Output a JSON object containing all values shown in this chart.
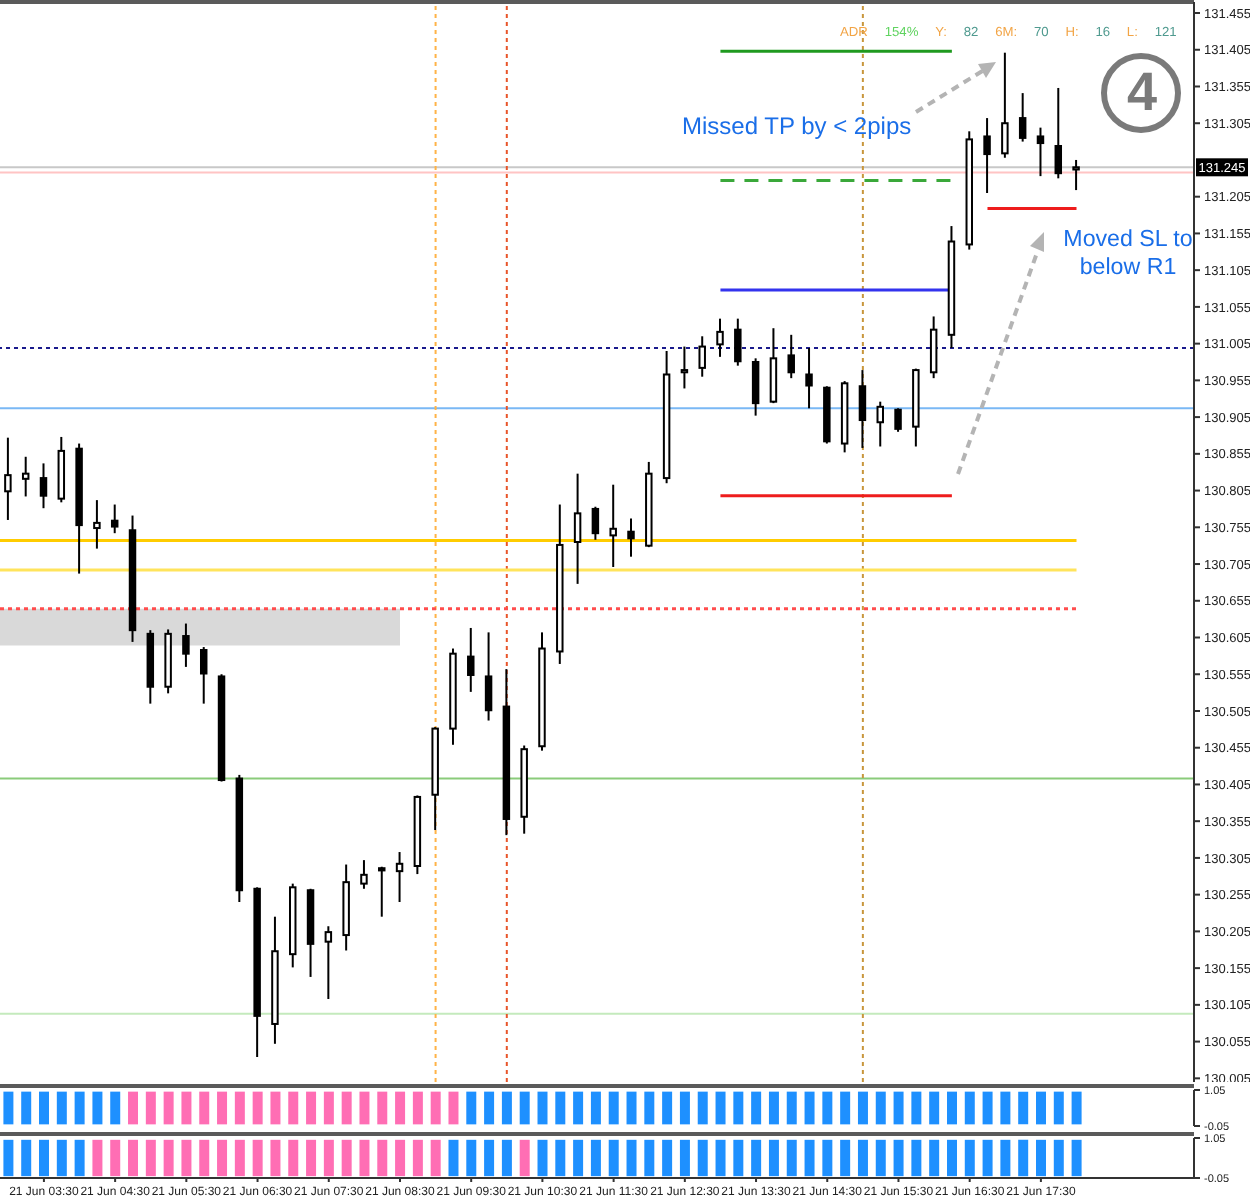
{
  "chart_data": [
    {
      "type": "candlestick",
      "x": [
        "--06-21T03:00",
        "--06-21T03:15",
        "--06-21T03:30",
        "--06-21T03:45",
        "--06-21T04:00",
        "--06-21T04:15",
        "--06-21T04:30",
        "--06-21T04:45",
        "--06-21T05:00",
        "--06-21T05:15",
        "--06-21T05:30",
        "--06-21T05:45",
        "--06-21T06:00",
        "--06-21T06:15",
        "--06-21T06:30",
        "--06-21T06:45",
        "--06-21T07:00",
        "--06-21T07:15",
        "--06-21T07:30",
        "--06-21T07:45",
        "--06-21T08:00",
        "--06-21T08:15",
        "--06-21T08:30",
        "--06-21T08:45",
        "--06-21T09:00",
        "--06-21T09:15",
        "--06-21T09:30",
        "--06-21T09:45",
        "--06-21T10:00",
        "--06-21T10:15",
        "--06-21T10:30",
        "--06-21T10:45",
        "--06-21T11:00",
        "--06-21T11:15",
        "--06-21T11:30",
        "--06-21T11:45",
        "--06-21T12:00",
        "--06-21T12:15",
        "--06-21T12:30",
        "--06-21T12:45",
        "--06-21T13:00",
        "--06-21T13:15",
        "--06-21T13:30",
        "--06-21T13:45",
        "--06-21T14:00",
        "--06-21T14:15",
        "--06-21T14:30",
        "--06-21T14:45",
        "--06-21T15:00",
        "--06-21T15:15",
        "--06-21T15:30",
        "--06-21T15:45",
        "--06-21T16:00",
        "--06-21T16:15",
        "--06-21T16:30",
        "--06-21T16:45",
        "--06-21T17:00",
        "--06-21T17:15",
        "--06-21T17:30",
        "--06-21T17:45",
        "--06-21T18:00"
      ],
      "ohlc": [
        [
          130.804,
          130.877,
          130.765,
          130.826
        ],
        [
          130.821,
          130.851,
          130.797,
          130.828
        ],
        [
          130.822,
          130.842,
          130.781,
          130.798
        ],
        [
          130.794,
          130.878,
          130.789,
          130.859
        ],
        [
          130.862,
          130.869,
          130.692,
          130.758
        ],
        [
          130.754,
          130.792,
          130.726,
          130.761
        ],
        [
          130.764,
          130.786,
          130.747,
          130.756
        ],
        [
          130.751,
          130.771,
          130.599,
          130.615
        ],
        [
          130.61,
          130.615,
          130.515,
          130.538
        ],
        [
          130.538,
          130.616,
          130.529,
          130.61
        ],
        [
          130.607,
          130.624,
          130.565,
          130.583
        ],
        [
          130.588,
          130.592,
          130.515,
          130.556
        ],
        [
          130.552,
          130.555,
          130.409,
          130.411
        ],
        [
          130.413,
          130.418,
          130.245,
          130.261
        ],
        [
          130.263,
          130.265,
          130.034,
          130.09
        ],
        [
          130.079,
          130.225,
          130.052,
          130.178
        ],
        [
          130.174,
          130.27,
          130.156,
          130.265
        ],
        [
          130.261,
          130.263,
          130.143,
          130.188
        ],
        [
          130.191,
          130.212,
          130.113,
          130.204
        ],
        [
          130.2,
          130.296,
          130.179,
          130.272
        ],
        [
          130.27,
          130.302,
          130.263,
          130.282
        ],
        [
          130.291,
          130.293,
          130.225,
          130.288
        ],
        [
          130.287,
          130.313,
          130.245,
          130.297
        ],
        [
          130.294,
          130.39,
          130.283,
          130.388
        ],
        [
          130.391,
          130.483,
          130.343,
          130.481
        ],
        [
          130.481,
          130.59,
          130.459,
          130.583
        ],
        [
          130.579,
          130.618,
          130.531,
          130.554
        ],
        [
          130.552,
          130.612,
          130.492,
          130.506
        ],
        [
          130.511,
          130.562,
          130.336,
          130.358
        ],
        [
          130.361,
          130.458,
          130.338,
          130.453
        ],
        [
          130.457,
          130.612,
          130.451,
          130.59
        ],
        [
          130.586,
          130.786,
          130.569,
          130.731
        ],
        [
          130.735,
          130.828,
          130.678,
          130.774
        ],
        [
          130.78,
          130.783,
          130.738,
          130.747
        ],
        [
          130.744,
          130.813,
          130.701,
          130.753
        ],
        [
          130.749,
          130.767,
          130.715,
          130.74
        ],
        [
          130.73,
          130.844,
          130.728,
          130.828
        ],
        [
          130.822,
          130.995,
          130.815,
          130.963
        ],
        [
          130.966,
          131.001,
          130.944,
          130.969
        ],
        [
          130.972,
          131.015,
          130.96,
          131.001
        ],
        [
          131.004,
          131.039,
          130.987,
          131.021
        ],
        [
          131.024,
          131.039,
          130.975,
          130.981
        ],
        [
          130.98,
          130.985,
          130.907,
          130.924
        ],
        [
          130.926,
          131.026,
          130.924,
          130.985
        ],
        [
          130.989,
          131.017,
          130.958,
          130.966
        ],
        [
          130.963,
          130.999,
          130.917,
          130.948
        ],
        [
          130.945,
          130.947,
          130.869,
          130.872
        ],
        [
          130.869,
          130.954,
          130.857,
          130.951
        ],
        [
          130.947,
          130.969,
          130.863,
          130.901
        ],
        [
          130.898,
          130.926,
          130.865,
          130.919
        ],
        [
          130.915,
          130.917,
          130.885,
          130.889
        ],
        [
          130.892,
          130.971,
          130.865,
          130.969
        ],
        [
          130.966,
          131.042,
          130.958,
          131.024
        ],
        [
          131.017,
          131.165,
          130.999,
          131.144
        ],
        [
          131.14,
          131.294,
          131.133,
          131.283
        ],
        [
          131.287,
          131.312,
          131.21,
          131.263
        ],
        [
          131.264,
          131.401,
          131.258,
          131.305
        ],
        [
          131.312,
          131.346,
          131.28,
          131.285
        ],
        [
          131.287,
          131.299,
          131.233,
          131.278
        ],
        [
          131.274,
          131.353,
          131.23,
          131.237
        ],
        [
          131.242,
          131.255,
          131.214,
          131.245
        ]
      ],
      "color": "#000000",
      "series": [
        {
          "type": "line",
          "x": [
            "--06-21T02:53",
            "--06-21T08:30"
          ],
          "values": [
            130.642,
            130.642
          ],
          "lower": [
            130.594,
            130.594
          ],
          "upper": [
            130.642,
            130.642
          ],
          "color": "#d9d9d9",
          "line_style": "solid"
        },
        {
          "type": "line",
          "x": [
            "--06-21T02:53",
            "--06-21T18:00"
          ],
          "values": [
            130.737,
            130.737
          ],
          "color": "#ffcc00",
          "line_style": "solid"
        },
        {
          "type": "line",
          "x": [
            "--06-21T02:53",
            "--06-21T18:00"
          ],
          "values": [
            130.697,
            130.697
          ],
          "color": "#ffe45c",
          "line_style": "solid"
        },
        {
          "type": "line",
          "x": [
            "--06-21T02:53",
            "--06-21T18:00"
          ],
          "values": [
            130.644,
            130.644
          ],
          "color": "#ff4d4d",
          "line_style": "dotted"
        },
        {
          "type": "line",
          "x": [
            "--06-21T13:00",
            "--06-21T16:15"
          ],
          "values": [
            131.403,
            131.403
          ],
          "color": "#1f9a1f",
          "line_style": "solid"
        },
        {
          "type": "line",
          "x": [
            "--06-21T13:00",
            "--06-21T16:15"
          ],
          "values": [
            131.227,
            131.227
          ],
          "color": "#3aa83a",
          "line_style": "dashed"
        },
        {
          "type": "line",
          "x": [
            "--06-21T13:00",
            "--06-21T16:15"
          ],
          "values": [
            131.078,
            131.078
          ],
          "color": "#3333ee",
          "line_style": "solid"
        },
        {
          "type": "line",
          "x": [
            "--06-21T13:00",
            "--06-21T16:15"
          ],
          "values": [
            130.798,
            130.798
          ],
          "color": "#ee1c1c",
          "line_style": "solid"
        },
        {
          "type": "line",
          "x": [
            "--06-21T16:45",
            "--06-21T18:00"
          ],
          "values": [
            131.189,
            131.189
          ],
          "color": "#ee1c1c",
          "line_style": "solid"
        }
      ],
      "ref_lines": [
        {
          "axis": "y",
          "value": 131.245,
          "label": "131.245",
          "color": "#c8c8c8",
          "line_style": "solid"
        },
        {
          "axis": "y",
          "value": 131.238,
          "color": "#ffc4c4",
          "line_style": "solid"
        },
        {
          "axis": "y",
          "value": 130.999,
          "color": "#1a1a8c",
          "line_style": "dotted"
        },
        {
          "axis": "y",
          "value": 130.917,
          "color": "#7ab8f5",
          "line_style": "solid"
        },
        {
          "axis": "y",
          "value": 130.413,
          "color": "#8acb7a",
          "line_style": "solid"
        },
        {
          "axis": "y",
          "value": 130.093,
          "color": "#c4eabd",
          "line_style": "solid"
        },
        {
          "axis": "x",
          "value": "--06-21T09:00",
          "color": "#ffb347",
          "line_style": "dotted"
        },
        {
          "axis": "x",
          "value": "--06-21T10:00",
          "color": "#e8552a",
          "line_style": "dotted"
        },
        {
          "axis": "x",
          "value": "--06-21T15:00",
          "color": "#c8963c",
          "line_style": "dotted"
        }
      ],
      "annotations": [
        "ADR 154% Y: 82 6M: 70 H: 16 L: 121",
        "Missed TP by < 2pips",
        "Moved SL to below R1",
        "4"
      ],
      "xlim": [
        "--06-21T02:53",
        "--06-21T19:39"
      ],
      "ylim": [
        130.0,
        131.47
      ],
      "yticks": [
        130.005,
        130.055,
        130.105,
        130.155,
        130.205,
        130.255,
        130.305,
        130.355,
        130.405,
        130.455,
        130.505,
        130.555,
        130.605,
        130.655,
        130.705,
        130.755,
        130.805,
        130.855,
        130.905,
        130.955,
        131.005,
        131.055,
        131.105,
        131.155,
        131.205,
        131.305,
        131.355,
        131.405,
        131.455
      ],
      "tick_labels": "y"
    },
    {
      "type": "bar",
      "x": [
        "--06-21T03:00",
        "--06-21T03:15",
        "--06-21T03:30",
        "--06-21T03:45",
        "--06-21T04:00",
        "--06-21T04:15",
        "--06-21T04:30",
        "--06-21T04:45",
        "--06-21T05:00",
        "--06-21T05:15",
        "--06-21T05:30",
        "--06-21T05:45",
        "--06-21T06:00",
        "--06-21T06:15",
        "--06-21T06:30",
        "--06-21T06:45",
        "--06-21T07:00",
        "--06-21T07:15",
        "--06-21T07:30",
        "--06-21T07:45",
        "--06-21T08:00",
        "--06-21T08:15",
        "--06-21T08:30",
        "--06-21T08:45",
        "--06-21T09:00",
        "--06-21T09:15",
        "--06-21T09:30",
        "--06-21T09:45",
        "--06-21T10:00",
        "--06-21T10:15",
        "--06-21T10:30",
        "--06-21T10:45",
        "--06-21T11:00",
        "--06-21T11:15",
        "--06-21T11:30",
        "--06-21T11:45",
        "--06-21T12:00",
        "--06-21T12:15",
        "--06-21T12:30",
        "--06-21T12:45",
        "--06-21T13:00",
        "--06-21T13:15",
        "--06-21T13:30",
        "--06-21T13:45",
        "--06-21T14:00",
        "--06-21T14:15",
        "--06-21T14:30",
        "--06-21T14:45",
        "--06-21T15:00",
        "--06-21T15:15",
        "--06-21T15:30",
        "--06-21T15:45",
        "--06-21T16:00",
        "--06-21T16:15",
        "--06-21T16:30",
        "--06-21T16:45",
        "--06-21T17:00",
        "--06-21T17:15",
        "--06-21T17:30",
        "--06-21T17:45",
        "--06-21T18:00"
      ],
      "values": [
        1,
        1,
        1,
        1,
        1,
        1,
        1,
        1,
        1,
        1,
        1,
        1,
        1,
        1,
        1,
        1,
        1,
        1,
        1,
        1,
        1,
        1,
        1,
        1,
        1,
        1,
        1,
        1,
        1,
        1,
        1,
        1,
        1,
        1,
        1,
        1,
        1,
        1,
        1,
        1,
        1,
        1,
        1,
        1,
        1,
        1,
        1,
        1,
        1,
        1,
        1,
        1,
        1,
        1,
        1,
        1,
        1,
        1,
        1,
        1,
        1
      ],
      "colors": [
        "#1e90ff",
        "#1e90ff",
        "#1e90ff",
        "#1e90ff",
        "#1e90ff",
        "#1e90ff",
        "#1e90ff",
        "#ff6eb4",
        "#ff6eb4",
        "#ff6eb4",
        "#ff6eb4",
        "#ff6eb4",
        "#ff6eb4",
        "#ff6eb4",
        "#ff6eb4",
        "#ff6eb4",
        "#ff6eb4",
        "#ff6eb4",
        "#ff6eb4",
        "#ff6eb4",
        "#ff6eb4",
        "#ff6eb4",
        "#ff6eb4",
        "#ff6eb4",
        "#ff6eb4",
        "#ff6eb4",
        "#1e90ff",
        "#1e90ff",
        "#1e90ff",
        "#1e90ff",
        "#1e90ff",
        "#1e90ff",
        "#1e90ff",
        "#1e90ff",
        "#1e90ff",
        "#1e90ff",
        "#1e90ff",
        "#1e90ff",
        "#1e90ff",
        "#1e90ff",
        "#1e90ff",
        "#1e90ff",
        "#1e90ff",
        "#1e90ff",
        "#1e90ff",
        "#1e90ff",
        "#1e90ff",
        "#1e90ff",
        "#1e90ff",
        "#1e90ff",
        "#1e90ff",
        "#1e90ff",
        "#1e90ff",
        "#1e90ff",
        "#1e90ff",
        "#1e90ff",
        "#1e90ff",
        "#1e90ff",
        "#1e90ff",
        "#1e90ff",
        "#1e90ff"
      ],
      "xlim": [
        "--06-21T02:53",
        "--06-21T19:39"
      ],
      "ylim": [
        -0.05,
        1.05
      ],
      "yticks": [
        -0.05,
        1.05
      ],
      "tick_labels": "y"
    },
    {
      "type": "bar",
      "x": [
        "--06-21T03:00",
        "--06-21T03:15",
        "--06-21T03:30",
        "--06-21T03:45",
        "--06-21T04:00",
        "--06-21T04:15",
        "--06-21T04:30",
        "--06-21T04:45",
        "--06-21T05:00",
        "--06-21T05:15",
        "--06-21T05:30",
        "--06-21T05:45",
        "--06-21T06:00",
        "--06-21T06:15",
        "--06-21T06:30",
        "--06-21T06:45",
        "--06-21T07:00",
        "--06-21T07:15",
        "--06-21T07:30",
        "--06-21T07:45",
        "--06-21T08:00",
        "--06-21T08:15",
        "--06-21T08:30",
        "--06-21T08:45",
        "--06-21T09:00",
        "--06-21T09:15",
        "--06-21T09:30",
        "--06-21T09:45",
        "--06-21T10:00",
        "--06-21T10:15",
        "--06-21T10:30",
        "--06-21T10:45",
        "--06-21T11:00",
        "--06-21T11:15",
        "--06-21T11:30",
        "--06-21T11:45",
        "--06-21T12:00",
        "--06-21T12:15",
        "--06-21T12:30",
        "--06-21T12:45",
        "--06-21T13:00",
        "--06-21T13:15",
        "--06-21T13:30",
        "--06-21T13:45",
        "--06-21T14:00",
        "--06-21T14:15",
        "--06-21T14:30",
        "--06-21T14:45",
        "--06-21T15:00",
        "--06-21T15:15",
        "--06-21T15:30",
        "--06-21T15:45",
        "--06-21T16:00",
        "--06-21T16:15",
        "--06-21T16:30",
        "--06-21T16:45",
        "--06-21T17:00",
        "--06-21T17:15",
        "--06-21T17:30",
        "--06-21T17:45",
        "--06-21T18:00"
      ],
      "values": [
        1,
        1,
        1,
        1,
        1,
        1,
        1,
        1,
        1,
        1,
        1,
        1,
        1,
        1,
        1,
        1,
        1,
        1,
        1,
        1,
        1,
        1,
        1,
        1,
        1,
        1,
        1,
        1,
        1,
        1,
        1,
        1,
        1,
        1,
        1,
        1,
        1,
        1,
        1,
        1,
        1,
        1,
        1,
        1,
        1,
        1,
        1,
        1,
        1,
        1,
        1,
        1,
        1,
        1,
        1,
        1,
        1,
        1,
        1,
        1,
        1
      ],
      "colors": [
        "#1e90ff",
        "#1e90ff",
        "#1e90ff",
        "#1e90ff",
        "#1e90ff",
        "#ff6eb4",
        "#ff6eb4",
        "#ff6eb4",
        "#ff6eb4",
        "#ff6eb4",
        "#ff6eb4",
        "#ff6eb4",
        "#ff6eb4",
        "#ff6eb4",
        "#ff6eb4",
        "#ff6eb4",
        "#ff6eb4",
        "#ff6eb4",
        "#ff6eb4",
        "#ff6eb4",
        "#ff6eb4",
        "#ff6eb4",
        "#ff6eb4",
        "#ff6eb4",
        "#ff6eb4",
        "#1e90ff",
        "#1e90ff",
        "#1e90ff",
        "#1e90ff",
        "#ff6eb4",
        "#1e90ff",
        "#1e90ff",
        "#1e90ff",
        "#1e90ff",
        "#1e90ff",
        "#1e90ff",
        "#1e90ff",
        "#1e90ff",
        "#1e90ff",
        "#1e90ff",
        "#1e90ff",
        "#1e90ff",
        "#1e90ff",
        "#1e90ff",
        "#1e90ff",
        "#1e90ff",
        "#1e90ff",
        "#1e90ff",
        "#1e90ff",
        "#1e90ff",
        "#1e90ff",
        "#1e90ff",
        "#1e90ff",
        "#1e90ff",
        "#1e90ff",
        "#1e90ff",
        "#1e90ff",
        "#1e90ff",
        "#1e90ff",
        "#1e90ff",
        "#1e90ff"
      ],
      "xlim": [
        "--06-21T02:53",
        "--06-21T19:39"
      ],
      "ylim": [
        -0.05,
        1.05
      ],
      "yticks": [
        -0.05,
        1.05
      ],
      "xticks": [
        {
          "value": "--06-21T03:30",
          "label": "21 Jun 03:30"
        },
        {
          "value": "--06-21T04:30",
          "label": "21 Jun 04:30"
        },
        {
          "value": "--06-21T05:30",
          "label": "21 Jun 05:30"
        },
        {
          "value": "--06-21T06:30",
          "label": "21 Jun 06:30"
        },
        {
          "value": "--06-21T07:30",
          "label": "21 Jun 07:30"
        },
        {
          "value": "--06-21T08:30",
          "label": "21 Jun 08:30"
        },
        {
          "value": "--06-21T09:30",
          "label": "21 Jun 09:30"
        },
        {
          "value": "--06-21T10:30",
          "label": "21 Jun 10:30"
        },
        {
          "value": "--06-21T11:30",
          "label": "21 Jun 11:30"
        },
        {
          "value": "--06-21T12:30",
          "label": "21 Jun 12:30"
        },
        {
          "value": "--06-21T13:30",
          "label": "21 Jun 13:30"
        },
        {
          "value": "--06-21T14:30",
          "label": "21 Jun 14:30"
        },
        {
          "value": "--06-21T15:30",
          "label": "21 Jun 15:30"
        },
        {
          "value": "--06-21T16:30",
          "label": "21 Jun 16:30"
        },
        {
          "value": "--06-21T17:30",
          "label": "21 Jun 17:30"
        }
      ]
    }
  ]
}
